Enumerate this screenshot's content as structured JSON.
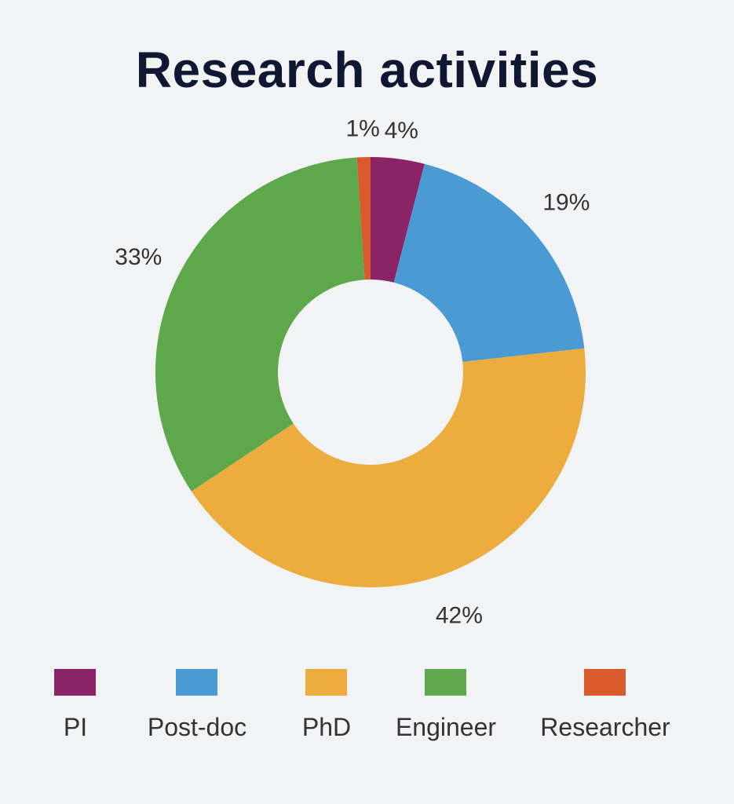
{
  "chart_data": {
    "type": "pie",
    "style": "donut",
    "title": "Research activities",
    "categories": [
      "PI",
      "Post-doc",
      "PhD",
      "Engineer",
      "Researcher"
    ],
    "values": [
      4,
      19,
      42,
      33,
      1
    ],
    "labels": [
      "4%",
      "19%",
      "42%",
      "33%",
      "1%"
    ],
    "colors": [
      "#8b2467",
      "#4a9ad4",
      "#edad3e",
      "#5ca84a",
      "#d95b2c"
    ],
    "legend_position": "bottom"
  }
}
